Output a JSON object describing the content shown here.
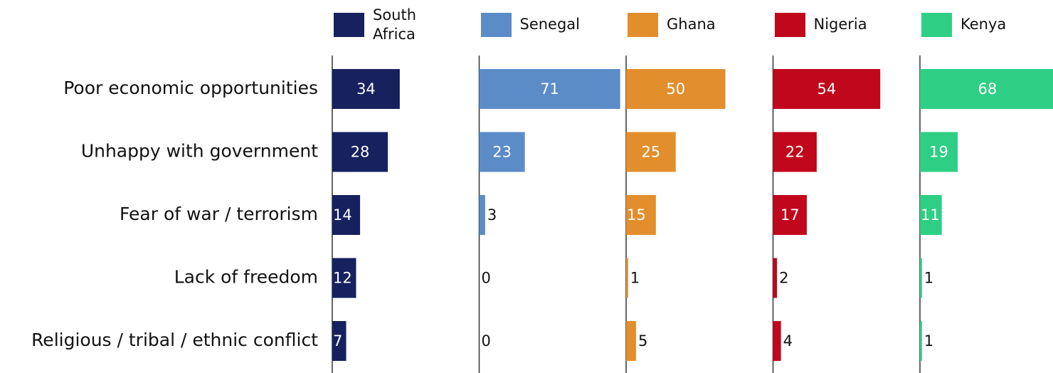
{
  "chart_data": {
    "type": "bar",
    "categories": [
      "Poor economic opportunities",
      "Unhappy with government",
      "Fear of war / terrorism",
      "Lack of freedom",
      "Religious / tribal / ethnic conflict"
    ],
    "series": [
      {
        "name": "South Africa",
        "color": "#16215e",
        "values": [
          34,
          28,
          14,
          12,
          7
        ]
      },
      {
        "name": "Senegal",
        "color": "#5b8cc8",
        "values": [
          71,
          23,
          3,
          0,
          0
        ]
      },
      {
        "name": "Ghana",
        "color": "#e38e2c",
        "values": [
          50,
          25,
          15,
          1,
          5
        ]
      },
      {
        "name": "Nigeria",
        "color": "#c0071c",
        "values": [
          54,
          22,
          17,
          2,
          4
        ]
      },
      {
        "name": "Kenya",
        "color": "#2ecf84",
        "values": [
          68,
          19,
          11,
          1,
          1
        ]
      }
    ],
    "xlim": [
      0,
      74
    ]
  }
}
